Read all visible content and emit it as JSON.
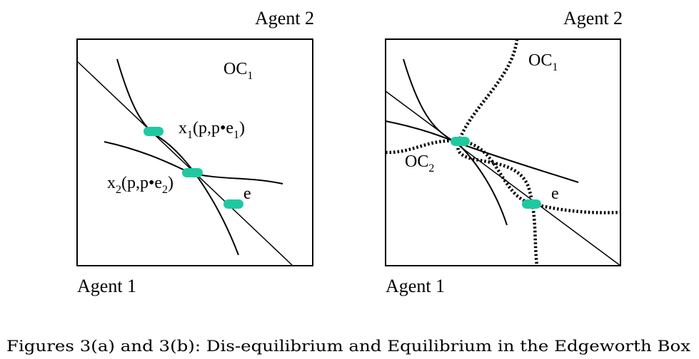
{
  "left_panel": {
    "top_label": "Agent 2",
    "bottom_label": "Agent 1",
    "oc_label": {
      "base": "OC",
      "sub": "1"
    },
    "x1_label": {
      "pre": "x",
      "sub1": "1",
      "mid": "(p,p•e",
      "sub2": "1",
      "post": ")"
    },
    "x2_label": {
      "pre": "x",
      "sub1": "2",
      "mid": "(p,p•e",
      "sub2": "2",
      "post": ")"
    },
    "endowment_label": "e"
  },
  "right_panel": {
    "top_label": "Agent 2",
    "bottom_label": "Agent 1",
    "oc1_label": {
      "base": "OC",
      "sub": "1"
    },
    "oc2_label": {
      "base": "OC",
      "sub": "2"
    },
    "endowment_label": "e"
  },
  "caption": "Figures 3(a) and 3(b): Dis-equilibrium and Equilibrium in the Edgeworth Box",
  "colors": {
    "marker": "#1fc9a0",
    "line": "#000000"
  }
}
